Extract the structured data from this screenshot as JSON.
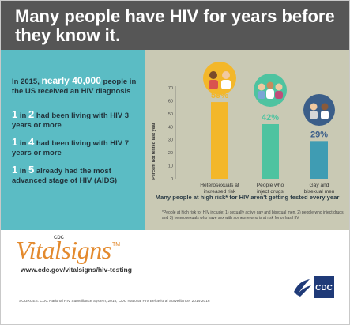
{
  "header": {
    "title": "Many people have HIV for years before they know it."
  },
  "left_panel": {
    "p1_a": "In 2015,",
    "p1_highlight": "nearly 40,000",
    "p1_b": "people in the US received an HIV diagnosis",
    "p2_num": "1",
    "p2_in": "in",
    "p2_den": "2",
    "p2_rest": "had been living with HIV 3 years or more",
    "p3_num": "1",
    "p3_in": "in",
    "p3_den": "4",
    "p3_rest": "had been living with HIV 7 years or more",
    "p4_num": "1",
    "p4_in": "in",
    "p4_den": "5",
    "p4_rest": "already had the most advanced stage of HIV (AIDS)"
  },
  "chart_data": {
    "type": "bar",
    "ylabel": "Percent not tested last year",
    "ylim": [
      0,
      70
    ],
    "yticks": [
      0,
      10,
      20,
      30,
      40,
      50,
      60,
      70
    ],
    "categories": [
      "Heterosexuals at increased risk",
      "People who inject drugs",
      "Gay and bisexual men"
    ],
    "category_lines": [
      [
        "Heterosexuals at",
        "increased risk"
      ],
      [
        "People who",
        "inject drugs"
      ],
      [
        "Gay and",
        "bisexual men"
      ]
    ],
    "values": [
      59,
      42,
      29
    ],
    "value_labels": [
      "59%",
      "42%",
      "29%"
    ],
    "colors": {
      "bar": "#f3b72a",
      "bar_2": "#4ec3a0",
      "bar_3": "#3f9cb3",
      "label_1": "#f3b72a",
      "label_2": "#4ec3a0",
      "label_3": "#3b5e89"
    },
    "caption": "Many people at high risk* for HIV aren't getting tested every year"
  },
  "footnote": "*People at high risk for HIV include: 1) sexually active gay and bisexual men, 2) people who inject drugs, and 3) heterosexuals who have sex with someone who is at risk for or has HIV.",
  "branding": {
    "cdc_small": "CDC",
    "vital": "Vitalsigns",
    "tm": "TM",
    "url": "www.cdc.gov/vitalsigns/hiv-testing",
    "sources": "SOURCES: CDC National HIV Surveillance System, 2015; CDC National HIV Behavioral Surveillance, 2014-2016",
    "cdc_logo_text": "CDC"
  }
}
